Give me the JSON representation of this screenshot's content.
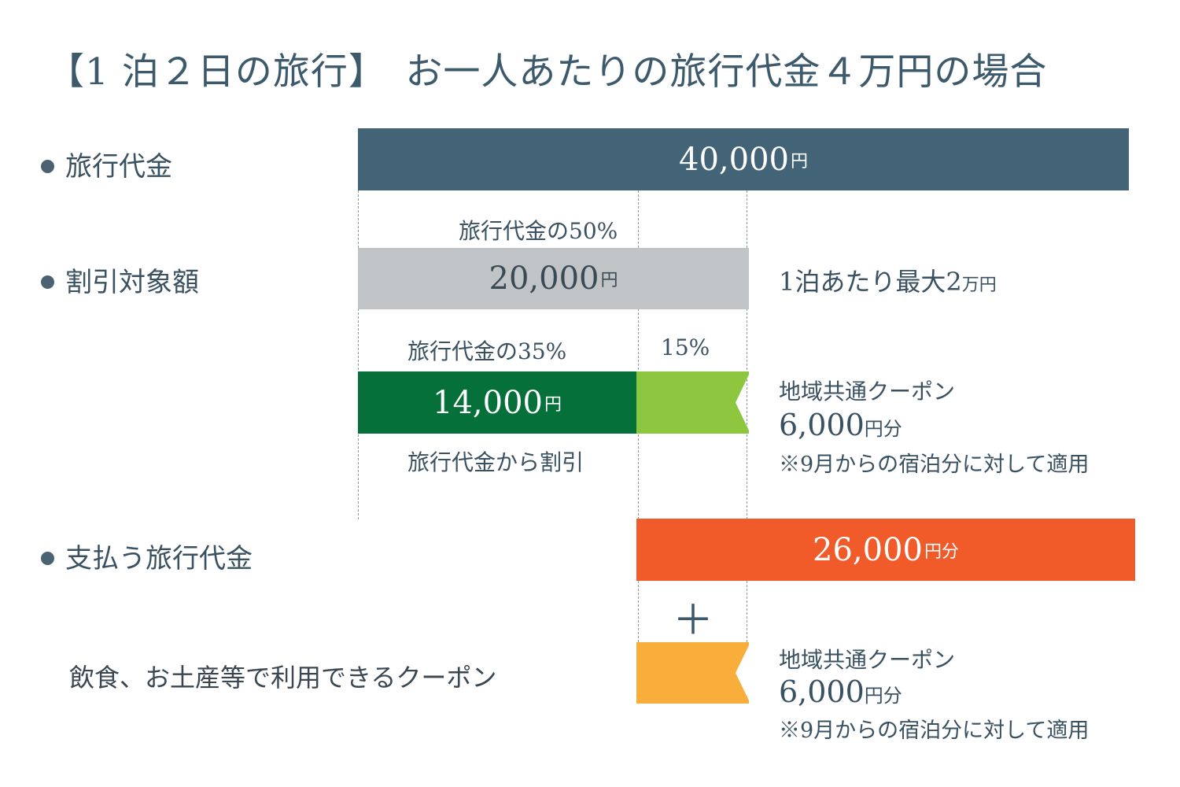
{
  "title": "【1 泊２日の旅行】　お一人あたりの旅行代金４万円の場合",
  "rows": {
    "travel_fee": {
      "label": "旅行代金",
      "amount": "40,000",
      "unit": "円"
    },
    "discount_target": {
      "label": "割引対象額",
      "caption": "旅行代金の50%",
      "amount": "20,000",
      "unit": "円",
      "side_note": "1泊あたり最大2",
      "side_note_unit": "万円"
    },
    "split": {
      "left_caption": "旅行代金の35%",
      "right_caption": "15%",
      "discount_amount": "14,000",
      "discount_unit": "円",
      "discount_caption": "旅行代金から割引",
      "coupon_title": "地域共通クーポン",
      "coupon_amount": "6,000",
      "coupon_unit": "円分",
      "coupon_note": "※9月からの宿泊分に対して適用"
    },
    "payment": {
      "label": "支払う旅行代金",
      "amount": "26,000",
      "unit": "円分"
    },
    "plus_sign": "＋",
    "coupon_use": {
      "label": "飲食、お土産等で利用できるクーポン",
      "coupon_title": "地域共通クーポン",
      "coupon_amount": "6,000",
      "coupon_unit": "円分",
      "coupon_note": "※9月からの宿泊分に対して適用"
    }
  },
  "colors": {
    "travel_bar": "#426476",
    "target_bar": "#c1c4c6",
    "discount_bar": "#06703a",
    "coupon_bar": "#8dc63f",
    "payment_bar": "#f15a29",
    "coupon_use_bar": "#f9ae3b"
  }
}
